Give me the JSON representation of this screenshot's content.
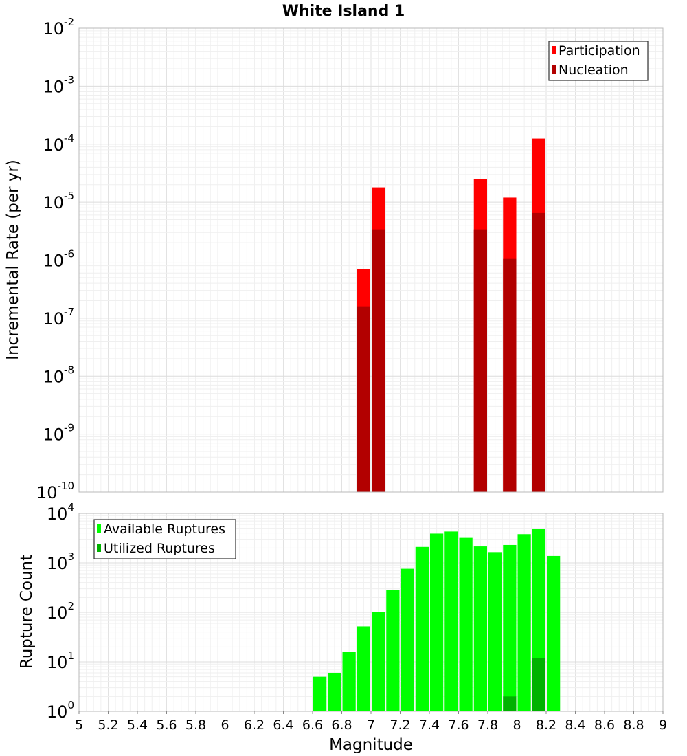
{
  "chart_data": [
    {
      "type": "bar",
      "title": "White Island 1",
      "ylabel": "Incremental Rate (per yr)",
      "xlabel": "",
      "y_scale": "log",
      "ylim": [
        1e-10,
        0.01
      ],
      "xlim": [
        5,
        9
      ],
      "y_exponents": [
        -10,
        -9,
        -8,
        -7,
        -6,
        -5,
        -4,
        -3,
        -2
      ],
      "grid": true,
      "legend_position": "top-right",
      "bar_mode": "overlay",
      "series": [
        {
          "name": "Participation",
          "color": "#ff0000",
          "x": [
            6.95,
            7.05,
            7.75,
            7.95,
            8.15
          ],
          "values": [
            7e-07,
            1.8e-05,
            2.5e-05,
            1.2e-05,
            0.000125
          ]
        },
        {
          "name": "Nucleation",
          "color": "#b20000",
          "x": [
            6.95,
            7.05,
            7.75,
            7.95,
            8.15
          ],
          "values": [
            1.6e-07,
            3.4e-06,
            3.4e-06,
            1.05e-06,
            6.5e-06
          ]
        }
      ]
    },
    {
      "type": "bar",
      "title": "",
      "ylabel": "Rupture Count",
      "xlabel": "Magnitude",
      "y_scale": "log",
      "ylim": [
        1,
        10000
      ],
      "xlim": [
        5,
        9
      ],
      "y_exponents": [
        0,
        1,
        2,
        3,
        4
      ],
      "x_ticks": [
        "5",
        "5.2",
        "5.4",
        "5.6",
        "5.8",
        "6",
        "6.2",
        "6.4",
        "6.6",
        "6.8",
        "7",
        "7.2",
        "7.4",
        "7.6",
        "7.8",
        "8",
        "8.2",
        "8.4",
        "8.6",
        "8.8",
        "9"
      ],
      "grid": true,
      "legend_position": "top-left",
      "bar_mode": "overlay",
      "series": [
        {
          "name": "Available Ruptures",
          "color": "#00ff00",
          "x": [
            6.65,
            6.75,
            6.85,
            6.95,
            7.05,
            7.15,
            7.25,
            7.35,
            7.45,
            7.55,
            7.65,
            7.75,
            7.85,
            7.95,
            8.05,
            8.15,
            8.25
          ],
          "values": [
            5,
            6,
            16,
            52,
            100,
            280,
            760,
            2100,
            3900,
            4300,
            3200,
            2150,
            1650,
            2300,
            3800,
            4900,
            1380
          ]
        },
        {
          "name": "Utilized Ruptures",
          "color": "#00b200",
          "x": [
            6.95,
            7.05,
            7.25,
            7.65,
            7.75,
            7.95,
            8.15
          ],
          "values": [
            1,
            1,
            1,
            1,
            1,
            2,
            12
          ]
        }
      ]
    }
  ]
}
